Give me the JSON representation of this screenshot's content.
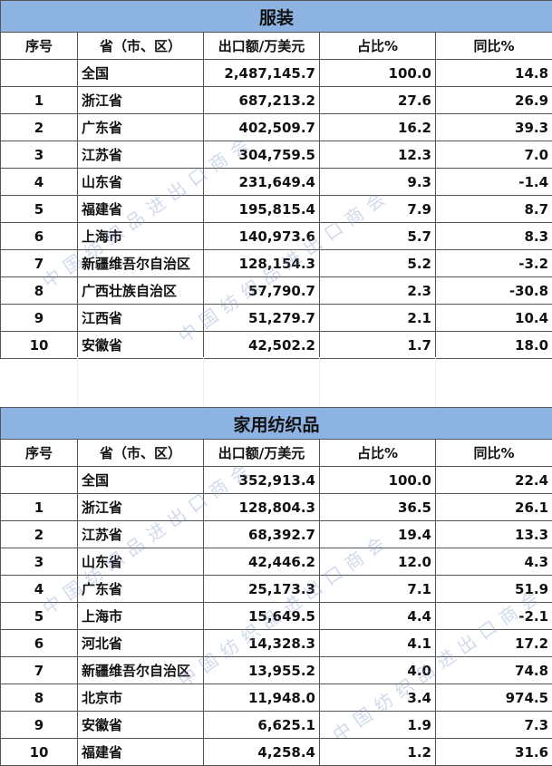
{
  "watermark": "中国纺织品进出口商会",
  "columns": [
    "序号",
    "省（市、区）",
    "出口额/万美元",
    "占比%",
    "同比%"
  ],
  "tables": [
    {
      "title": "服装",
      "rows": [
        [
          "",
          "全国",
          "2,487,145.7",
          "100.0",
          "14.8"
        ],
        [
          "1",
          "浙江省",
          "687,213.2",
          "27.6",
          "26.9"
        ],
        [
          "2",
          "广东省",
          "402,509.7",
          "16.2",
          "39.3"
        ],
        [
          "3",
          "江苏省",
          "304,759.5",
          "12.3",
          "7.0"
        ],
        [
          "4",
          "山东省",
          "231,649.4",
          "9.3",
          "-1.4"
        ],
        [
          "5",
          "福建省",
          "195,815.4",
          "7.9",
          "8.7"
        ],
        [
          "6",
          "上海市",
          "140,973.6",
          "5.7",
          "8.3"
        ],
        [
          "7",
          "新疆维吾尔自治区",
          "128,154.3",
          "5.2",
          "-3.2"
        ],
        [
          "8",
          "广西壮族自治区",
          "57,790.7",
          "2.3",
          "-30.8"
        ],
        [
          "9",
          "江西省",
          "51,279.7",
          "2.1",
          "10.4"
        ],
        [
          "10",
          "安徽省",
          "42,502.2",
          "1.7",
          "18.0"
        ]
      ]
    },
    {
      "title": "家用纺织品",
      "rows": [
        [
          "",
          "全国",
          "352,913.4",
          "100.0",
          "22.4"
        ],
        [
          "1",
          "浙江省",
          "128,804.3",
          "36.5",
          "26.1"
        ],
        [
          "2",
          "江苏省",
          "68,392.7",
          "19.4",
          "13.3"
        ],
        [
          "3",
          "山东省",
          "42,446.2",
          "12.0",
          "4.3"
        ],
        [
          "4",
          "广东省",
          "25,173.3",
          "7.1",
          "51.9"
        ],
        [
          "5",
          "上海市",
          "15,649.5",
          "4.4",
          "-2.1"
        ],
        [
          "6",
          "河北省",
          "14,328.3",
          "4.1",
          "17.2"
        ],
        [
          "7",
          "新疆维吾尔自治区",
          "13,955.2",
          "4.0",
          "74.8"
        ],
        [
          "8",
          "北京市",
          "11,948.0",
          "3.4",
          "974.5"
        ],
        [
          "9",
          "安徽省",
          "6,625.1",
          "1.9",
          "7.3"
        ],
        [
          "10",
          "福建省",
          "4,258.4",
          "1.2",
          "31.6"
        ]
      ]
    }
  ]
}
